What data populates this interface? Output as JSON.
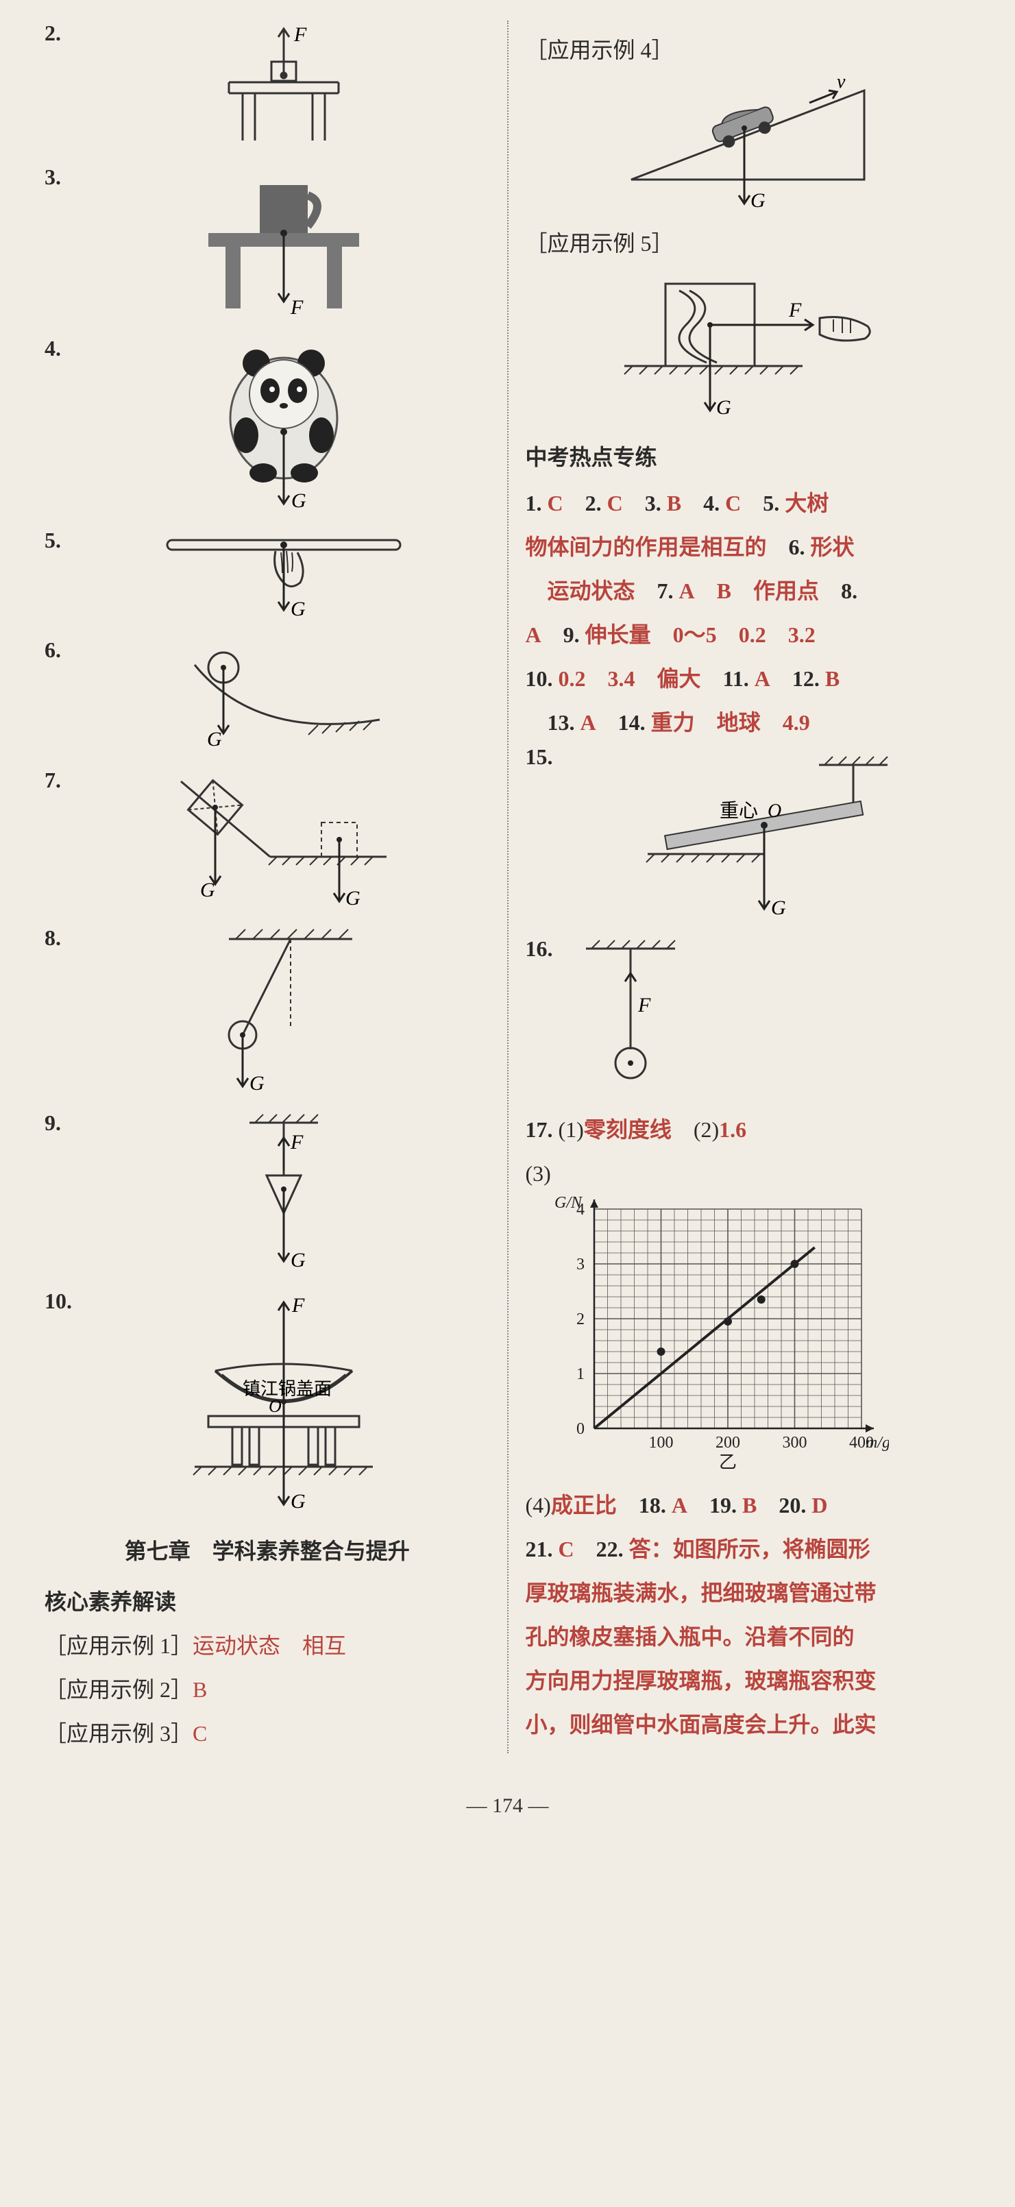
{
  "left": {
    "items": [
      {
        "n": "2."
      },
      {
        "n": "3."
      },
      {
        "n": "4."
      },
      {
        "n": "5."
      },
      {
        "n": "6."
      },
      {
        "n": "7."
      },
      {
        "n": "8."
      },
      {
        "n": "9."
      },
      {
        "n": "10."
      }
    ],
    "labels": {
      "F": "F",
      "G": "G",
      "bowl": "镇江锅盖面",
      "O": "O"
    },
    "chapter": "第七章　学科素养整合与提升",
    "core": "核心素养解读",
    "ex1_label": "［应用示例 1］",
    "ex1_ans": "运动状态　相互",
    "ex2_label": "［应用示例 2］",
    "ex2_ans": "B",
    "ex3_label": "［应用示例 3］",
    "ex3_ans": "C"
  },
  "right": {
    "ex4_label": "［应用示例 4］",
    "ex5_label": "［应用示例 5］",
    "labels": {
      "v": "v",
      "G": "G",
      "F": "F",
      "center": "重心",
      "O": "O"
    },
    "zkrd": "中考热点专练",
    "line1": "1. C　2. C　3. B　4. C　5. 大树",
    "line2": "物体间力的作用是相互的　6. 形状",
    "line3": "　运动状态　7. A　B　作用点　8.",
    "line4": "A　9. 伸长量　0～5　0.2　3.2",
    "line5": "10. 0.2　3.4　偏大　11. A　12. B",
    "line6": "　13. A　14. 重力　地球　4.9",
    "q15": "15.",
    "q16": "16.",
    "q17": "17. (1)零刻度线　(2)1.6",
    "q17_3": "(3)",
    "chart": {
      "xlabel": "m/g",
      "ylabel": "G/N",
      "sub": "乙",
      "xticks": [
        0,
        100,
        200,
        300,
        400
      ],
      "yticks": [
        0,
        1,
        2,
        3,
        4
      ],
      "xlim": [
        0,
        400
      ],
      "ylim": [
        0,
        4
      ],
      "points": [
        [
          100,
          1.4
        ],
        [
          200,
          1.95
        ],
        [
          250,
          2.35
        ],
        [
          300,
          3.0
        ]
      ],
      "line": [
        [
          0,
          0
        ],
        [
          330,
          3.3
        ]
      ],
      "grid_color": "#555",
      "bg": "#efeae0",
      "axis_color": "#222",
      "point_color": "#222",
      "line_color": "#222",
      "font_size": 24
    },
    "line_after_chart": "(4)成正比　18. A　19. B　20. D",
    "line21": "21. C　22. 答：如图所示，将椭圆形",
    "line22": "厚玻璃瓶装满水，把细玻璃管通过带",
    "line23": "孔的橡皮塞插入瓶中。沿着不同的",
    "line24": "方向用力捏厚玻璃瓶，玻璃瓶容积变",
    "line25": "小，则细管中水面高度会上升。此实"
  },
  "page_num": "— 174 —",
  "colors": {
    "paper": "#f2ede4",
    "ink": "#2a2a2a",
    "accent": "#b8443d",
    "diagram": "#333"
  }
}
